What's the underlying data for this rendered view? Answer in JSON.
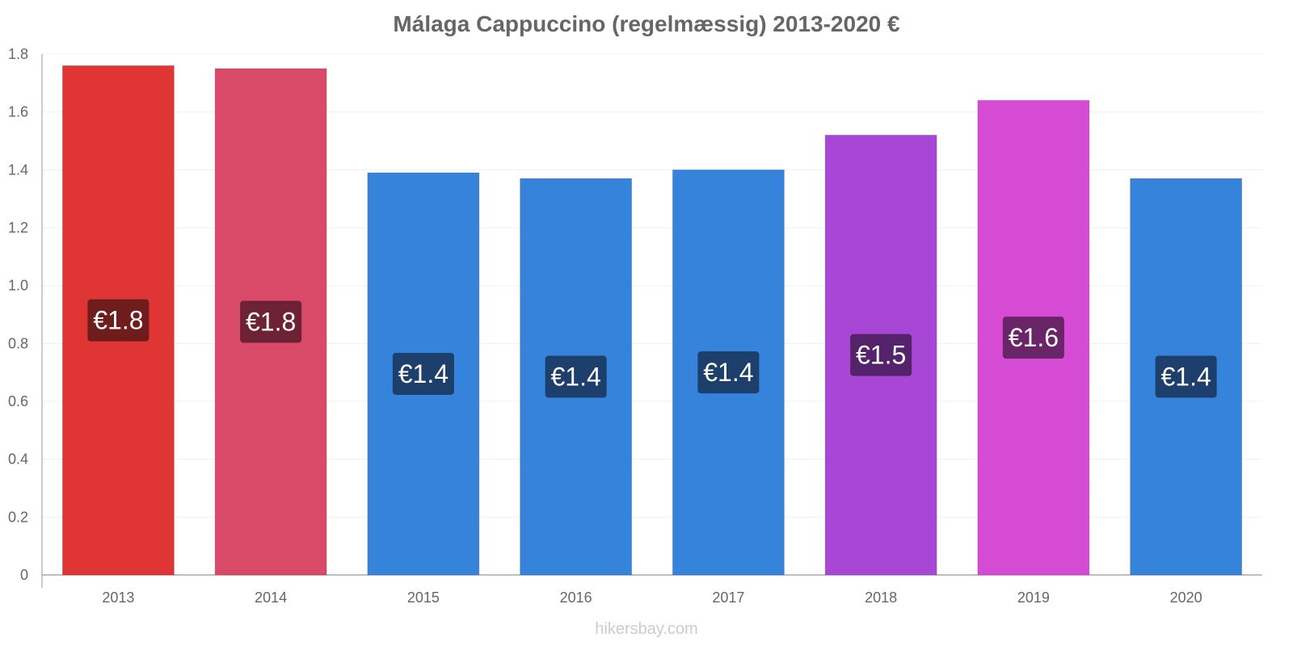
{
  "chart_data": {
    "type": "bar",
    "title": "Málaga Cappuccino (regelmæssig) 2013-2020 €",
    "xlabel": "",
    "ylabel": "",
    "categories": [
      "2013",
      "2014",
      "2015",
      "2016",
      "2017",
      "2018",
      "2019",
      "2020"
    ],
    "values": [
      1.76,
      1.75,
      1.39,
      1.37,
      1.4,
      1.52,
      1.64,
      1.37
    ],
    "data_labels": [
      "€1.8",
      "€1.8",
      "€1.4",
      "€1.4",
      "€1.4",
      "€1.5",
      "€1.6",
      "€1.4"
    ],
    "bar_colors": [
      "#e03535",
      "#d94a68",
      "#3683dc",
      "#3683dc",
      "#3683dc",
      "#a847d6",
      "#d64bd4",
      "#3683dc"
    ],
    "label_bg_colors": [
      "#6e1c1c",
      "#6e2236",
      "#1c3f6b",
      "#1c3f6b",
      "#1c3f6b",
      "#55236b",
      "#6a2468",
      "#1c3f6b"
    ],
    "ylim": [
      0,
      1.8
    ],
    "yticks": [
      "0",
      "0.2",
      "0.4",
      "0.6",
      "0.8",
      "1.0",
      "1.2",
      "1.4",
      "1.6",
      "1.8"
    ],
    "grid": true,
    "legend": "none"
  },
  "watermark": "hikersbay.com"
}
